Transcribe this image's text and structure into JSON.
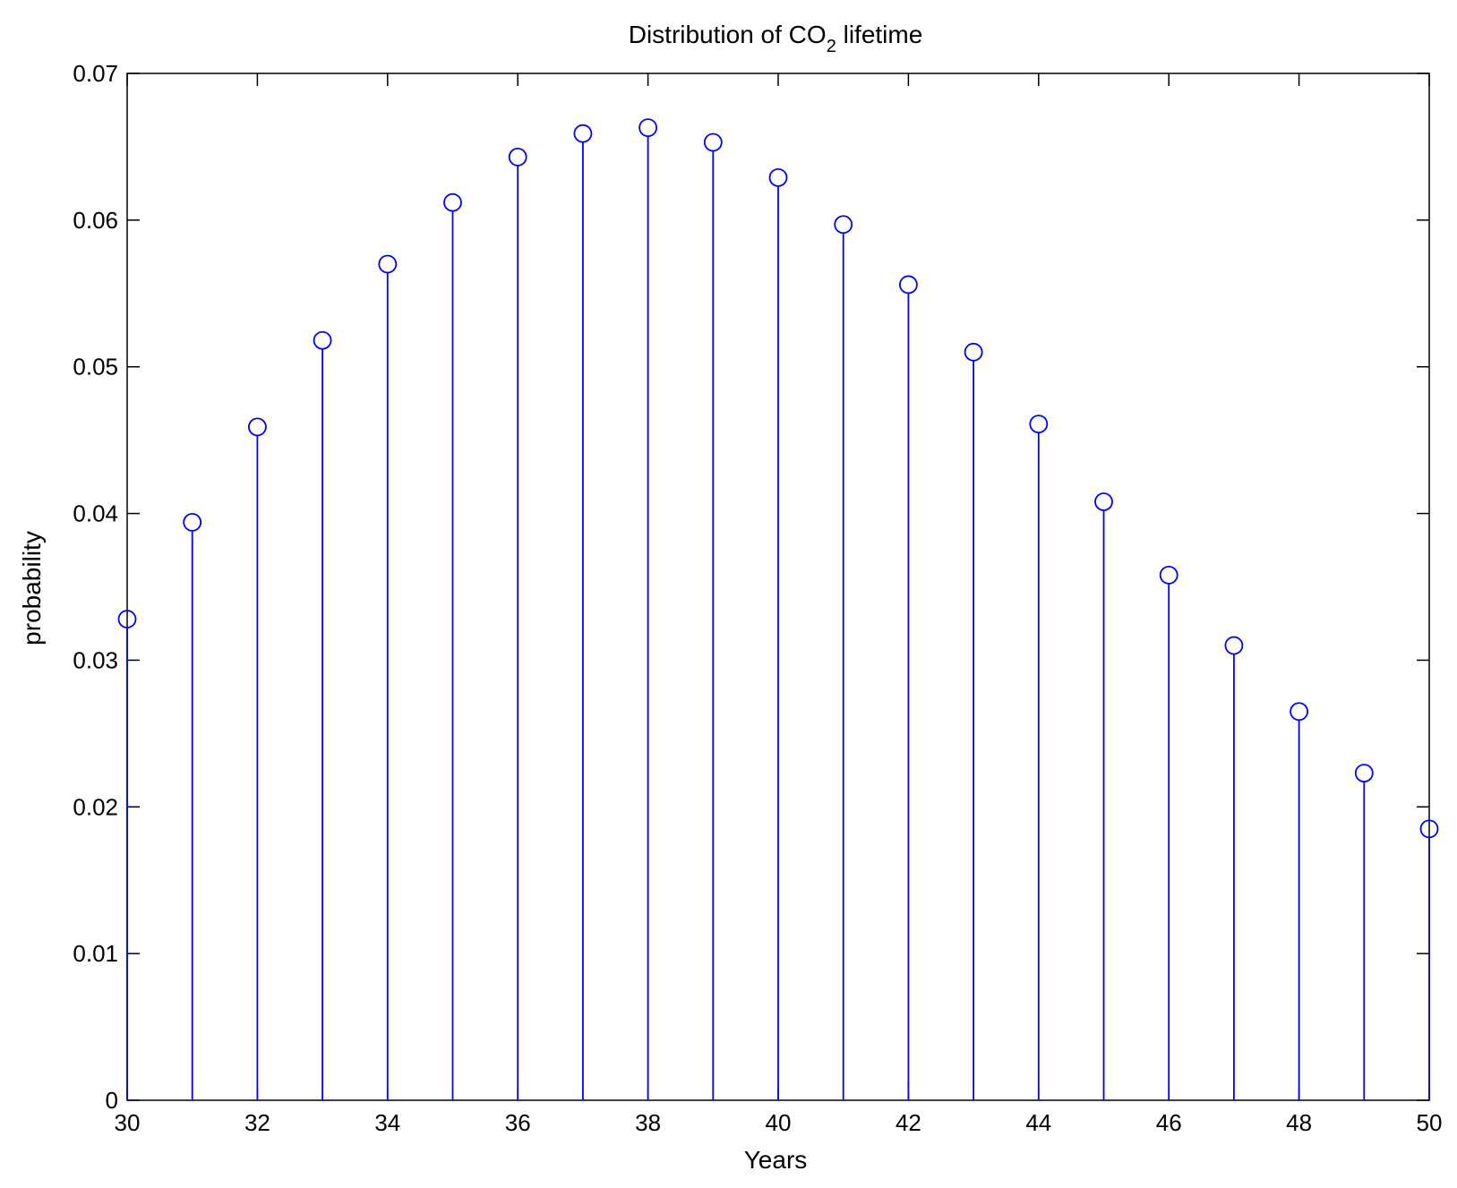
{
  "chart_data": {
    "type": "stem",
    "title": "Distribution of CO",
    "title_subscript": "2",
    "title_suffix": " lifetime",
    "xlabel": "Years",
    "ylabel": "probability",
    "xlim": [
      30,
      50
    ],
    "ylim": [
      0,
      0.07
    ],
    "xticks": [
      "30",
      "32",
      "34",
      "36",
      "38",
      "40",
      "42",
      "44",
      "46",
      "48",
      "50"
    ],
    "yticks": [
      "0",
      "0.01",
      "0.02",
      "0.03",
      "0.04",
      "0.05",
      "0.06",
      "0.07"
    ],
    "grid": false,
    "series": [
      {
        "color": "#0000ff",
        "marker": "circle",
        "x": [
          30,
          31,
          32,
          33,
          34,
          35,
          36,
          37,
          38,
          39,
          40,
          41,
          42,
          43,
          44,
          45,
          46,
          47,
          48,
          49,
          50
        ],
        "y": [
          0.0328,
          0.0394,
          0.0459,
          0.0518,
          0.057,
          0.0612,
          0.0643,
          0.0659,
          0.0663,
          0.0653,
          0.0629,
          0.0597,
          0.0556,
          0.051,
          0.0461,
          0.0408,
          0.0358,
          0.031,
          0.0265,
          0.0223,
          0.0185
        ]
      }
    ]
  }
}
